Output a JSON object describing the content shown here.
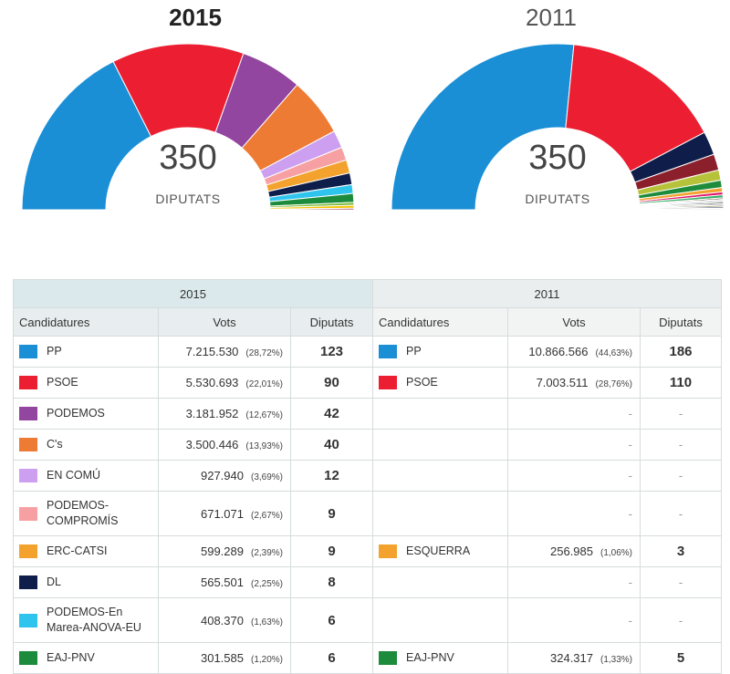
{
  "chart_data": [
    {
      "type": "pie",
      "title": "2015",
      "total": "350",
      "total_label": "DIPUTATS",
      "segments": [
        {
          "value": 123,
          "color": "#1a8fd6"
        },
        {
          "value": 90,
          "color": "#ec1f32"
        },
        {
          "value": 42,
          "color": "#92469f"
        },
        {
          "value": 40,
          "color": "#ee7b34"
        },
        {
          "value": 12,
          "color": "#cc9ff0"
        },
        {
          "value": 9,
          "color": "#f7a0a3"
        },
        {
          "value": 9,
          "color": "#f3a22d"
        },
        {
          "value": 8,
          "color": "#0f1d4a"
        },
        {
          "value": 6,
          "color": "#2fc4ee"
        },
        {
          "value": 6,
          "color": "#1c8b3b"
        },
        {
          "value": 2,
          "color": "#7dbb3a"
        },
        {
          "value": 2,
          "color": "#f4c300"
        },
        {
          "value": 1,
          "color": "#8b1f2c"
        }
      ]
    },
    {
      "type": "pie",
      "title": "2011",
      "total": "350",
      "total_label": "DIPUTATS",
      "segments": [
        {
          "value": 186,
          "color": "#1a8fd6"
        },
        {
          "value": 110,
          "color": "#ec1f32"
        },
        {
          "value": 16,
          "color": "#0f1d4a"
        },
        {
          "value": 11,
          "color": "#8b1f2c"
        },
        {
          "value": 7,
          "color": "#b6c33a"
        },
        {
          "value": 5,
          "color": "#1c8b3b"
        },
        {
          "value": 3,
          "color": "#f3a22d"
        },
        {
          "value": 2,
          "color": "#e0136f"
        },
        {
          "value": 2,
          "color": "#3bb06a"
        },
        {
          "value": 1,
          "color": "#5e3f2c"
        },
        {
          "value": 1,
          "color": "#c8c8c8"
        },
        {
          "value": 1,
          "color": "#8e9ca3"
        },
        {
          "value": 1,
          "color": "#333333"
        },
        {
          "value": 1,
          "color": "#999999"
        },
        {
          "value": 1,
          "color": "#6b6b2c"
        },
        {
          "value": 1,
          "color": "#444a6e"
        },
        {
          "value": 1,
          "color": "#e8e8e8"
        }
      ]
    }
  ],
  "table": {
    "group_2015": "2015",
    "group_2011": "2011",
    "headers": {
      "candidatures": "Candidatures",
      "vots": "Vots",
      "diputats": "Diputats"
    },
    "rows": [
      {
        "c15": "PP",
        "col15": "#1a8fd6",
        "v15": "7.215.530",
        "p15": "(28,72%)",
        "s15": "123",
        "c11": "PP",
        "col11": "#1a8fd6",
        "v11": "10.866.566",
        "p11": "(44,63%)",
        "s11": "186"
      },
      {
        "c15": "PSOE",
        "col15": "#ec1f32",
        "v15": "5.530.693",
        "p15": "(22,01%)",
        "s15": "90",
        "c11": "PSOE",
        "col11": "#ec1f32",
        "v11": "7.003.511",
        "p11": "(28,76%)",
        "s11": "110"
      },
      {
        "c15": "PODEMOS",
        "col15": "#92469f",
        "v15": "3.181.952",
        "p15": "(12,67%)",
        "s15": "42",
        "c11": "",
        "col11": "",
        "v11": "-",
        "p11": "",
        "s11": "-"
      },
      {
        "c15": "C's",
        "col15": "#ee7b34",
        "v15": "3.500.446",
        "p15": "(13,93%)",
        "s15": "40",
        "c11": "",
        "col11": "",
        "v11": "-",
        "p11": "",
        "s11": "-"
      },
      {
        "c15": "EN COMÚ",
        "col15": "#cc9ff0",
        "v15": "927.940",
        "p15": "(3,69%)",
        "s15": "12",
        "c11": "",
        "col11": "",
        "v11": "-",
        "p11": "",
        "s11": "-"
      },
      {
        "c15": "PODEMOS-COMPROMÍS",
        "c15a": "PODEMOS-",
        "c15b": "COMPROMÍS",
        "col15": "#f7a0a3",
        "v15": "671.071",
        "p15": "(2,67%)",
        "s15": "9",
        "c11": "",
        "col11": "",
        "v11": "-",
        "p11": "",
        "s11": "-"
      },
      {
        "c15": "ERC-CATSI",
        "col15": "#f3a22d",
        "v15": "599.289",
        "p15": "(2,39%)",
        "s15": "9",
        "c11": "ESQUERRA",
        "col11": "#f3a22d",
        "v11": "256.985",
        "p11": "(1,06%)",
        "s11": "3"
      },
      {
        "c15": "DL",
        "col15": "#0f1d4a",
        "v15": "565.501",
        "p15": "(2,25%)",
        "s15": "8",
        "c11": "",
        "col11": "",
        "v11": "-",
        "p11": "",
        "s11": "-"
      },
      {
        "c15": "PODEMOS-En Marea-ANOVA-EU",
        "c15a": "PODEMOS-En",
        "c15b": "Marea-ANOVA-EU",
        "col15": "#2fc4ee",
        "v15": "408.370",
        "p15": "(1,63%)",
        "s15": "6",
        "c11": "",
        "col11": "",
        "v11": "-",
        "p11": "",
        "s11": "-"
      },
      {
        "c15": "EAJ-PNV",
        "col15": "#1c8b3b",
        "v15": "301.585",
        "p15": "(1,20%)",
        "s15": "6",
        "c11": "EAJ-PNV",
        "col11": "#1c8b3b",
        "v11": "324.317",
        "p11": "(1,33%)",
        "s11": "5"
      }
    ]
  }
}
